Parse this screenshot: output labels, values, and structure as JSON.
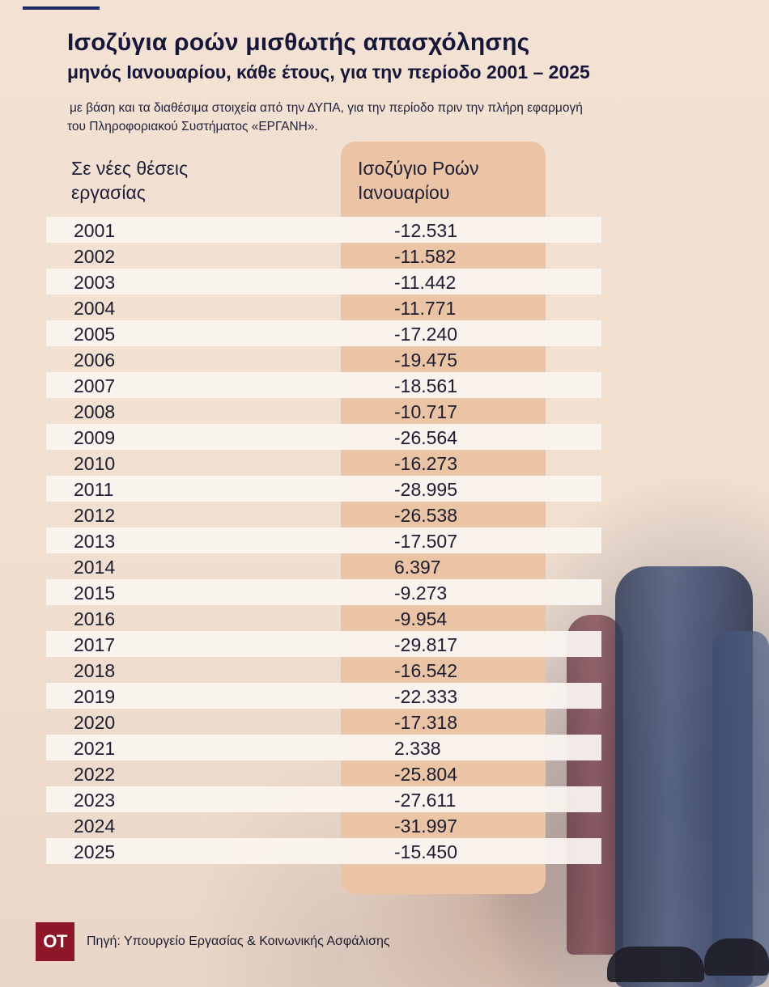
{
  "title": "Ισοζύγια ροών μισθωτής απασχόλησης",
  "subtitle": "μηνός Ιανουαρίου, κάθε έτους, για την περίοδο 2001 – 2025",
  "note": "με βάση και τα διαθέσιμα στοιχεία από την ΔΥΠΑ, για την περίοδο πριν την πλήρη εφαρμογή του Πληροφοριακού Συστήματος «ΕΡΓΑΝΗ».",
  "table": {
    "head_left": "Σε νέες θέσεις εργασίας",
    "head_right": "Ισοζύγιο Ροών Ιανουαρίου",
    "rows": [
      {
        "year": "2001",
        "value": "-12.531"
      },
      {
        "year": "2002",
        "value": "-11.582"
      },
      {
        "year": "2003",
        "value": "-11.442"
      },
      {
        "year": "2004",
        "value": "-11.771"
      },
      {
        "year": "2005",
        "value": "-17.240"
      },
      {
        "year": "2006",
        "value": "-19.475"
      },
      {
        "year": "2007",
        "value": "-18.561"
      },
      {
        "year": "2008",
        "value": "-10.717"
      },
      {
        "year": "2009",
        "value": "-26.564"
      },
      {
        "year": "2010",
        "value": "-16.273"
      },
      {
        "year": "2011",
        "value": "-28.995"
      },
      {
        "year": "2012",
        "value": "-26.538"
      },
      {
        "year": "2013",
        "value": "-17.507"
      },
      {
        "year": "2014",
        "value": " 6.397"
      },
      {
        "year": "2015",
        "value": "-9.273"
      },
      {
        "year": "2016",
        "value": "-9.954"
      },
      {
        "year": "2017",
        "value": "-29.817"
      },
      {
        "year": "2018",
        "value": "-16.542"
      },
      {
        "year": "2019",
        "value": "-22.333"
      },
      {
        "year": "2020",
        "value": "-17.318"
      },
      {
        "year": "2021",
        "value": "2.338"
      },
      {
        "year": "2022",
        "value": "-25.804"
      },
      {
        "year": "2023",
        "value": "-27.611"
      },
      {
        "year": "2024",
        "value": "-31.997"
      },
      {
        "year": "2025",
        "value": "-15.450"
      }
    ]
  },
  "footer": {
    "logo_text": "OT",
    "source": "Πηγή: Υπουργείο Εργασίας & Κοινωνικής Ασφάλισης"
  },
  "colors": {
    "background": "#f3e2d3",
    "column_highlight": "#ebc3a5",
    "logo": "#8d1628",
    "accent_rule": "#1d2a63"
  }
}
